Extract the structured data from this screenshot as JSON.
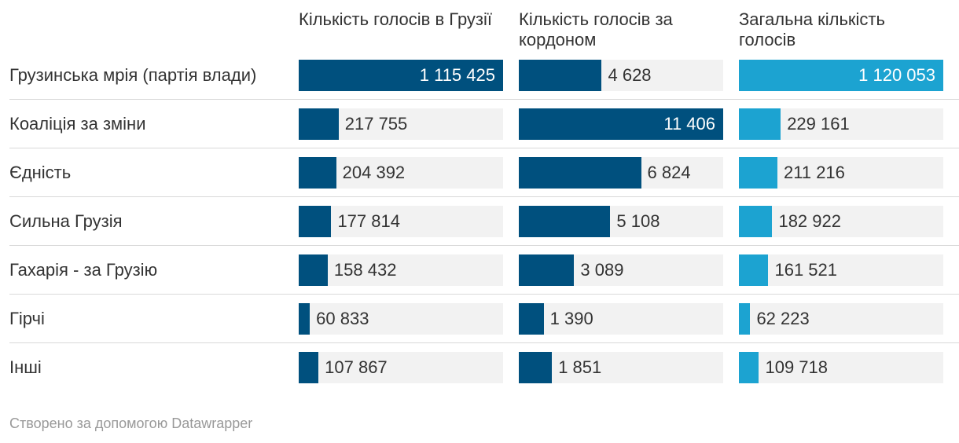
{
  "chart_data": {
    "type": "bar",
    "columns": [
      {
        "label": "Кількість голосів в Грузії",
        "color": "#00507e"
      },
      {
        "label": "Кількість голосів за кордоном",
        "color": "#00507e"
      },
      {
        "label": "Загальна кількість голосів",
        "color": "#1ca3d1"
      }
    ],
    "categories": [
      "Грузинська мрія (партія влади)",
      "Коаліція за зміни",
      "Єдність",
      "Сильна Грузія",
      "Гахарія - за Грузію",
      "Гірчі",
      "Інші"
    ],
    "series": [
      {
        "name": "Кількість голосів в Грузії",
        "values": [
          1115425,
          217755,
          204392,
          177814,
          158432,
          60833,
          107867
        ],
        "labels": [
          "1 115 425",
          "217 755",
          "204 392",
          "177 814",
          "158 432",
          "60 833",
          "107 867"
        ]
      },
      {
        "name": "Кількість голосів за кордоном",
        "values": [
          4628,
          11406,
          6824,
          5108,
          3089,
          1390,
          1851
        ],
        "labels": [
          "4 628",
          "11 406",
          "6 824",
          "5 108",
          "3 089",
          "1 390",
          "1 851"
        ]
      },
      {
        "name": "Загальна кількість голосів",
        "values": [
          1120053,
          229161,
          211216,
          182922,
          161521,
          62223,
          109718
        ],
        "labels": [
          "1 120 053",
          "229 161",
          "211 216",
          "182 922",
          "161 521",
          "62 223",
          "109 718"
        ]
      }
    ]
  },
  "footer": {
    "credit": "Створено за допомогою Datawrapper"
  }
}
